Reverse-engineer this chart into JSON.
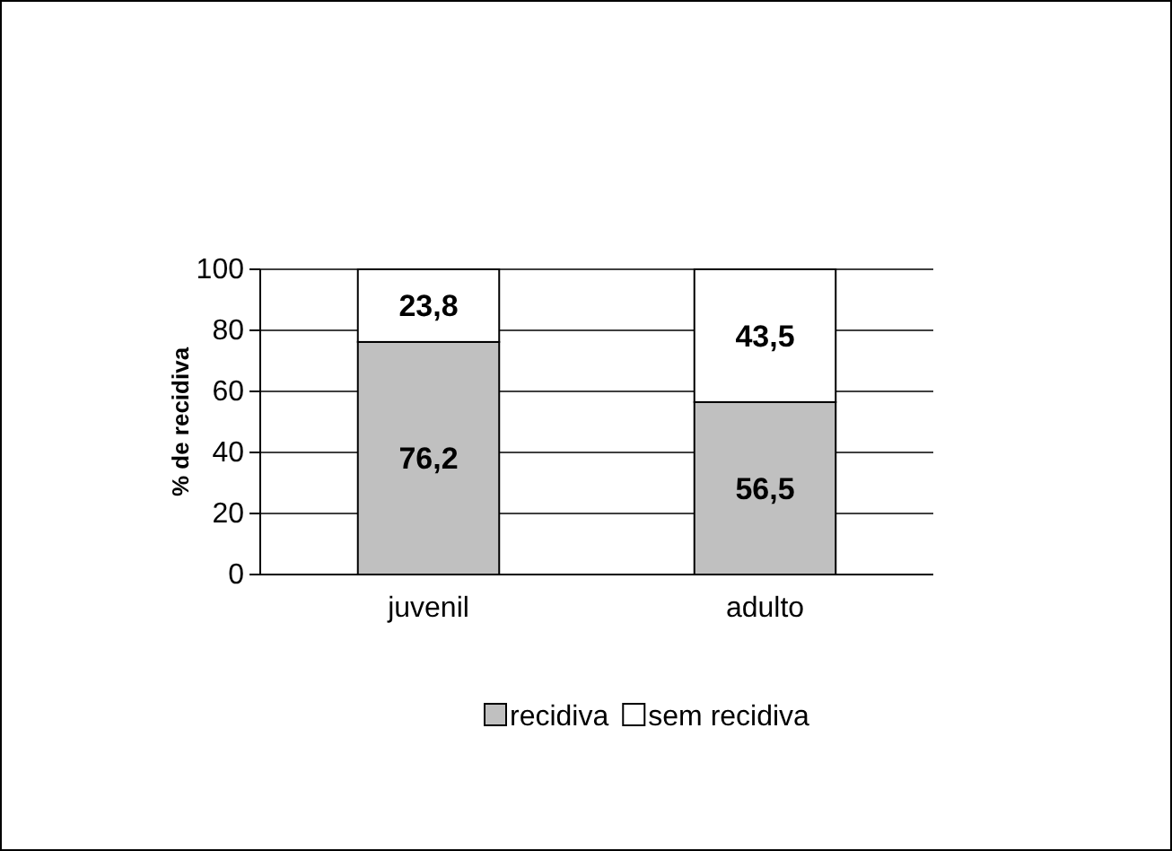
{
  "chart_data": {
    "type": "bar",
    "stacked": true,
    "ylabel": "% de recidiva",
    "categories": [
      "juvenil",
      "adulto"
    ],
    "series": [
      {
        "name": "recidiva",
        "color": "#c0c0c0",
        "values": [
          76.2,
          56.5
        ],
        "value_labels": [
          "76,2",
          "56,5"
        ]
      },
      {
        "name": "sem recidiva",
        "color": "#ffffff",
        "values": [
          23.8,
          43.5
        ],
        "value_labels": [
          "23,8",
          "43,5"
        ]
      }
    ],
    "ylim": [
      0,
      100
    ],
    "yticks": [
      0,
      20,
      40,
      60,
      80,
      100
    ],
    "grid": "y",
    "legend": "bottom"
  }
}
